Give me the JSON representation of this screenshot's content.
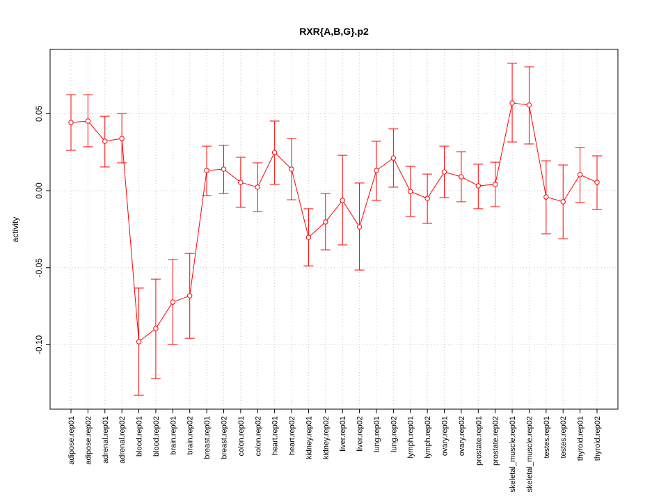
{
  "chart_data": {
    "type": "line",
    "title": "RXR{A,B,G}.p2",
    "xlabel": "",
    "ylabel": "activity",
    "ylim": [
      -0.1418,
      0.0917
    ],
    "yticks": [
      0.05,
      0.0,
      -0.05,
      -0.1
    ],
    "ytick_labels": [
      "0.05",
      "0.00",
      "-0.05",
      "-0.10"
    ],
    "grid": true,
    "color": "#ff0000",
    "categories": [
      "adipose.rep01",
      "adipose.rep02",
      "adrenal.rep01",
      "adrenal.rep02",
      "blood.rep01",
      "blood.rep02",
      "brain.rep01",
      "brain.rep02",
      "breast.rep01",
      "breast.rep02",
      "colon.rep01",
      "colon.rep02",
      "heart.rep01",
      "heart.rep02",
      "kidney.rep01",
      "kidney.rep02",
      "liver.rep01",
      "liver.rep02",
      "lung.rep01",
      "lung.rep02",
      "lymph.rep01",
      "lymph.rep02",
      "ovary.rep01",
      "ovary.rep02",
      "prostate.rep01",
      "prostate.rep02",
      "skeletal_muscle.rep01",
      "skeletal_muscle.rep02",
      "testes.rep01",
      "testes.rep02",
      "thyroid.rep01",
      "thyroid.rep02"
    ],
    "values": [
      0.0443,
      0.0452,
      0.0321,
      0.0339,
      -0.098,
      -0.0894,
      -0.0723,
      -0.0682,
      0.0131,
      0.014,
      0.0054,
      0.0023,
      0.0248,
      0.014,
      -0.0303,
      -0.0203,
      -0.0063,
      -0.0235,
      0.0131,
      0.0212,
      -0.0005,
      -0.005,
      0.0122,
      0.009,
      0.0032,
      0.0041,
      0.0569,
      0.0556,
      -0.0041,
      -0.0072,
      0.0104,
      0.0054
    ],
    "upper": [
      0.0623,
      0.0623,
      0.0483,
      0.0501,
      -0.0632,
      -0.0574,
      -0.0447,
      -0.0407,
      0.0289,
      0.0294,
      0.0217,
      0.0181,
      0.0452,
      0.0339,
      -0.0117,
      -0.0018,
      0.023,
      0.005,
      0.0321,
      0.0402,
      0.0158,
      0.0108,
      0.0289,
      0.0253,
      0.0172,
      0.0185,
      0.0827,
      0.0804,
      0.0194,
      0.0167,
      0.028,
      0.0226
    ],
    "lower": [
      0.0262,
      0.0285,
      0.0154,
      0.0181,
      -0.1328,
      -0.122,
      -0.0998,
      -0.0958,
      -0.0032,
      -0.0018,
      -0.0108,
      -0.0136,
      0.0041,
      -0.0059,
      -0.0488,
      -0.0384,
      -0.0352,
      -0.0515,
      -0.0063,
      0.0023,
      -0.0167,
      -0.0212,
      -0.0045,
      -0.0072,
      -0.0117,
      -0.0104,
      0.0316,
      0.0303,
      -0.028,
      -0.0312,
      -0.0077,
      -0.0122
    ]
  }
}
